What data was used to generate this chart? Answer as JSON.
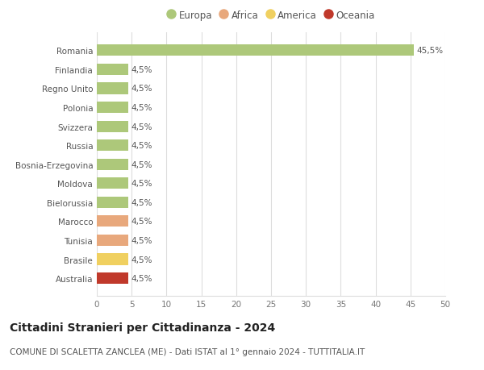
{
  "countries": [
    "Romania",
    "Finlandia",
    "Regno Unito",
    "Polonia",
    "Svizzera",
    "Russia",
    "Bosnia-Erzegovina",
    "Moldova",
    "Bielorussia",
    "Marocco",
    "Tunisia",
    "Brasile",
    "Australia"
  ],
  "values": [
    45.5,
    4.5,
    4.5,
    4.5,
    4.5,
    4.5,
    4.5,
    4.5,
    4.5,
    4.5,
    4.5,
    4.5,
    4.5
  ],
  "labels": [
    "45,5%",
    "4,5%",
    "4,5%",
    "4,5%",
    "4,5%",
    "4,5%",
    "4,5%",
    "4,5%",
    "4,5%",
    "4,5%",
    "4,5%",
    "4,5%",
    "4,5%"
  ],
  "colors": [
    "#adc87a",
    "#adc87a",
    "#adc87a",
    "#adc87a",
    "#adc87a",
    "#adc87a",
    "#adc87a",
    "#adc87a",
    "#adc87a",
    "#e8a87c",
    "#e8a87c",
    "#f0d060",
    "#c0392b"
  ],
  "continent_colors": {
    "Europa": "#adc87a",
    "Africa": "#e8a87c",
    "America": "#f0d060",
    "Oceania": "#c0392b"
  },
  "legend_labels": [
    "Europa",
    "Africa",
    "America",
    "Oceania"
  ],
  "xlim": [
    0,
    50
  ],
  "xticks": [
    0,
    5,
    10,
    15,
    20,
    25,
    30,
    35,
    40,
    45,
    50
  ],
  "title": "Cittadini Stranieri per Cittadinanza - 2024",
  "subtitle": "COMUNE DI SCALETTA ZANCLEA (ME) - Dati ISTAT al 1° gennaio 2024 - TUTTITALIA.IT",
  "background_color": "#ffffff",
  "grid_color": "#dddddd",
  "bar_height": 0.6,
  "title_fontsize": 10,
  "subtitle_fontsize": 7.5,
  "label_fontsize": 7.5,
  "tick_fontsize": 7.5,
  "legend_fontsize": 8.5
}
